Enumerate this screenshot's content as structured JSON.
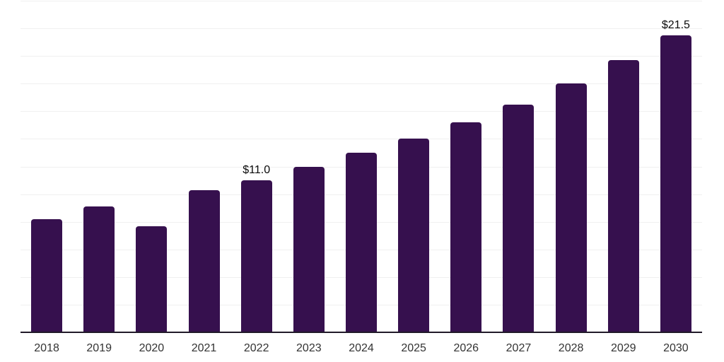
{
  "chart_data": {
    "type": "bar",
    "title": "",
    "xlabel": "",
    "ylabel": "",
    "categories": [
      "2018",
      "2019",
      "2020",
      "2021",
      "2022",
      "2023",
      "2024",
      "2025",
      "2026",
      "2027",
      "2028",
      "2029",
      "2030"
    ],
    "values": [
      8.2,
      9.1,
      7.7,
      10.3,
      11.0,
      12.0,
      13.0,
      14.0,
      15.2,
      16.5,
      18.0,
      19.7,
      21.5
    ],
    "point_labels": [
      "",
      "",
      "",
      "",
      "$11.0",
      "",
      "",
      "",
      "",
      "",
      "",
      "",
      "$21.5"
    ],
    "ylim": [
      0,
      24
    ],
    "gridline_step": 2,
    "grid": true,
    "legend": "none",
    "colors": {
      "bar_fill": "#36104E",
      "gridline": "#F0F0F0",
      "axis_line": "#211A29",
      "tick_label": "#333333",
      "data_label": "#0A0A0A",
      "background": "#FFFFFF"
    }
  }
}
